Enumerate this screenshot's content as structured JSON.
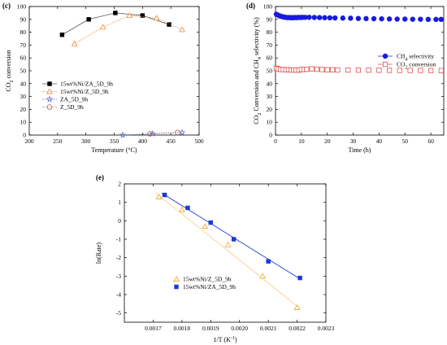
{
  "chart_data": [
    {
      "panel": "(c)",
      "type": "line",
      "xlabel": "Temperature (°C)",
      "ylabel": "CO₂ conversion",
      "xlim": [
        200,
        500
      ],
      "ylim": [
        0,
        100
      ],
      "xticks": [
        200,
        250,
        300,
        350,
        400,
        450,
        500
      ],
      "yticks": [
        0,
        10,
        20,
        30,
        40,
        50,
        60,
        70,
        80,
        90,
        100
      ],
      "legend_position": "center-left",
      "series": [
        {
          "name": "15wt%Ni/ZA_5D_9h",
          "color": "#000000",
          "marker": "square-filled",
          "line": "solid",
          "x": [
            258,
            305,
            352,
            400,
            447
          ],
          "y": [
            78,
            90,
            95,
            93,
            86
          ]
        },
        {
          "name": "15wt%Ni/Z_5D_9h",
          "color": "#f08a3c",
          "marker": "triangle-open",
          "line": "dotted",
          "x": [
            280,
            330,
            377,
            425,
            470
          ],
          "y": [
            71,
            84,
            93,
            91,
            82
          ]
        },
        {
          "name": "ZA_5D_9h",
          "color": "#4a5fd0",
          "marker": "star-open",
          "line": "dotted",
          "x": [
            365,
            418,
            470
          ],
          "y": [
            0,
            1,
            2
          ]
        },
        {
          "name": "Z_5D_9h",
          "color": "#b06060",
          "marker": "circle-open",
          "line": "dotted",
          "x": [
            413,
            462
          ],
          "y": [
            1,
            2
          ]
        }
      ]
    },
    {
      "panel": "(d)",
      "type": "scatter",
      "xlabel": "Time (h)",
      "ylabel": "CO₂ Conversion and CH₄ selectivity (%)",
      "xlim": [
        0,
        65
      ],
      "ylim": [
        0,
        100
      ],
      "xticks": [
        0,
        10,
        20,
        30,
        40,
        50,
        60
      ],
      "yticks": [
        0,
        10,
        20,
        30,
        40,
        50,
        60,
        70,
        80,
        90,
        100
      ],
      "legend_position": "center-right",
      "series": [
        {
          "name": "CH₄ selectivity",
          "color": "#1a1adc",
          "marker": "circle-filled",
          "x": [
            0.3,
            0.8,
            1.3,
            1.8,
            2.3,
            2.8,
            3.3,
            3.8,
            4.3,
            4.8,
            5.3,
            5.8,
            6.3,
            6.8,
            7.3,
            7.8,
            8.3,
            8.8,
            9.3,
            9.8,
            10.5,
            11.5,
            13,
            15,
            17,
            19,
            21,
            23,
            26,
            29,
            32,
            35,
            38,
            41,
            44,
            47,
            50,
            53,
            56,
            59,
            62,
            64
          ],
          "y": [
            94,
            93.5,
            93,
            92.6,
            92.3,
            92,
            91.8,
            91.6,
            91.5,
            91.4,
            91.4,
            91.3,
            91.3,
            91.3,
            91.4,
            91.4,
            91.4,
            91.5,
            91.5,
            91.5,
            91.6,
            91.6,
            91.6,
            91.5,
            91.4,
            91.3,
            91.2,
            91.1,
            91,
            90.9,
            90.7,
            90.6,
            90.5,
            90.4,
            90.3,
            90.2,
            90.2,
            90.1,
            90.1,
            90,
            90,
            90
          ]
        },
        {
          "name": "CO₂ conversion",
          "color": "#e05050",
          "marker": "square-open",
          "x": [
            0.3,
            1,
            2,
            3,
            4,
            5,
            6,
            7,
            8,
            9,
            10,
            11,
            12,
            14,
            16,
            18,
            20,
            22,
            24,
            28,
            32,
            36,
            40,
            44,
            48,
            52,
            56,
            60,
            64
          ],
          "y": [
            52,
            51.5,
            51,
            51,
            50.8,
            50.8,
            50.6,
            50.6,
            50.5,
            50.5,
            51,
            51,
            51.2,
            51.5,
            51.2,
            51,
            50.8,
            50.8,
            50.6,
            50.6,
            50.5,
            50.5,
            50.4,
            50.4,
            50.3,
            50.3,
            50.3,
            50.2,
            50.2
          ]
        }
      ]
    },
    {
      "panel": "(e)",
      "type": "scatter",
      "xlabel": "1/T (K⁻¹)",
      "ylabel": "ln(Rate)",
      "xlim": [
        0.0016,
        0.0023
      ],
      "ylim": [
        -5.5,
        2
      ],
      "xticks": [
        "0.0017",
        "0.0018",
        "0.0019",
        "0.0020",
        "0.0021",
        "0.0022",
        "0.0023"
      ],
      "yticks": [
        -5,
        -4,
        -3,
        -2,
        -1,
        0,
        1,
        2
      ],
      "legend_position": "lower-left",
      "series": [
        {
          "name": "15wt%Ni/Z_5D_9h",
          "color": "#f5a020",
          "marker": "triangle-open",
          "fit": "dotted",
          "x": [
            0.00172,
            0.0018,
            0.00188,
            0.00196,
            0.00208,
            0.0022
          ],
          "y": [
            1.3,
            0.6,
            -0.3,
            -1.3,
            -3.0,
            -4.7
          ],
          "fit_line": {
            "x": [
              0.00171,
              0.00221
            ],
            "y": [
              1.5,
              -4.75
            ]
          }
        },
        {
          "name": "15wt%Ni/ZA_5D_9h",
          "color": "#1a3ad8",
          "marker": "square-filled",
          "fit": "solid",
          "x": [
            0.00174,
            0.00182,
            0.0019,
            0.00198,
            0.0021,
            0.00221
          ],
          "y": [
            1.4,
            0.7,
            -0.1,
            -1.0,
            -2.2,
            -3.1
          ],
          "fit_line": {
            "x": [
              0.00173,
              0.00221
            ],
            "y": [
              1.5,
              -3.15
            ]
          }
        }
      ]
    }
  ]
}
